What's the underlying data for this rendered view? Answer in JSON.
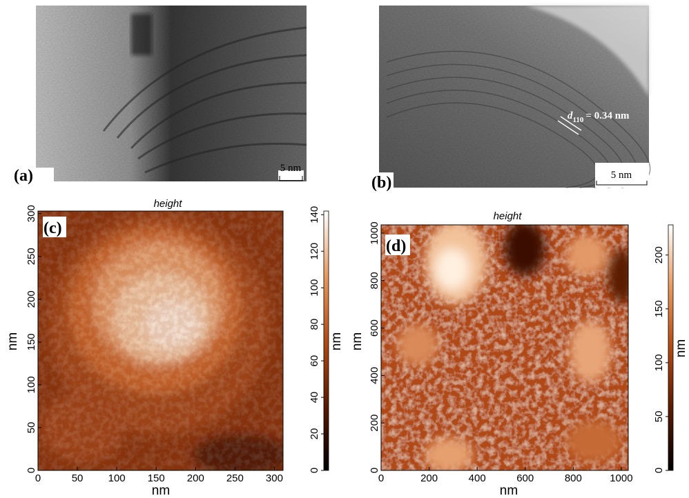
{
  "panels": {
    "a": {
      "label": "(a)",
      "scale_bar": "5 nm"
    },
    "b": {
      "label": "(b)",
      "lattice_symbol": "d",
      "lattice_subscript": "110",
      "lattice_value": "= 0.34 nm",
      "scale_bar": "5 nm"
    },
    "c": {
      "label": "(c)",
      "title": "height",
      "x_label": "nm",
      "y_label": "nm",
      "xlim": [
        0,
        311
      ],
      "ylim": [
        0,
        303
      ],
      "xticks": [
        0,
        50,
        100,
        150,
        200,
        250,
        300
      ],
      "yticks": [
        0,
        50,
        100,
        150,
        200,
        250,
        300
      ],
      "colorbar": {
        "label": "nm",
        "lim": [
          0,
          142
        ],
        "ticks": [
          0,
          20,
          40,
          60,
          80,
          100,
          120,
          140
        ]
      }
    },
    "d": {
      "label": "(d)",
      "title": "height",
      "x_label": "nm",
      "y_label": "nm",
      "xlim": [
        0,
        1029
      ],
      "ylim": [
        0,
        1035
      ],
      "xticks": [
        0,
        200,
        400,
        600,
        800,
        1000
      ],
      "yticks": [
        0,
        200,
        400,
        600,
        800,
        1000
      ],
      "colorbar": {
        "label": "nm",
        "lim": [
          0,
          228
        ],
        "ticks": [
          0,
          50,
          100,
          150,
          200
        ]
      }
    }
  }
}
